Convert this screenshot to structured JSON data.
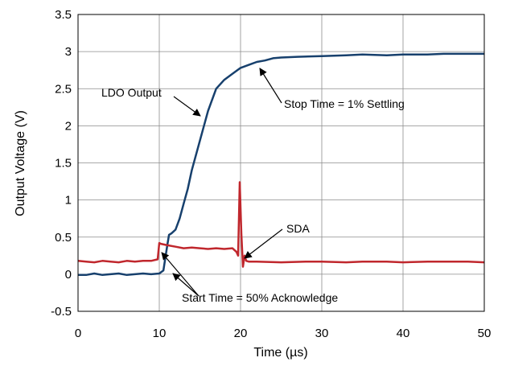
{
  "chart_data": {
    "type": "line",
    "title": "",
    "xlabel": "Time (µs)",
    "ylabel": "Output Voltage (V)",
    "xlim": [
      0,
      50
    ],
    "ylim": [
      -0.5,
      3.5
    ],
    "xticks": [
      "0",
      "10",
      "20",
      "30",
      "40",
      "50"
    ],
    "yticks": [
      "-0.5",
      "0",
      "0.5",
      "1",
      "1.5",
      "2",
      "2.5",
      "3",
      "3.5"
    ],
    "grid": true,
    "legend": "none",
    "series": [
      {
        "name": "LDO Output",
        "color": "#17406d",
        "x": [
          0,
          1,
          2,
          3,
          4,
          5,
          6,
          7,
          8,
          9,
          10,
          10.5,
          11,
          11.2,
          11.5,
          12,
          12.5,
          13,
          13.5,
          14,
          15,
          16,
          17,
          18,
          19,
          20,
          21,
          22,
          23,
          24,
          25,
          27,
          30,
          33,
          35,
          38,
          40,
          43,
          45,
          48,
          50
        ],
        "y": [
          -0.01,
          -0.01,
          0.01,
          -0.01,
          0.0,
          0.01,
          -0.01,
          0.0,
          0.01,
          0.0,
          0.01,
          0.05,
          0.4,
          0.53,
          0.55,
          0.6,
          0.75,
          0.95,
          1.15,
          1.4,
          1.8,
          2.2,
          2.5,
          2.62,
          2.7,
          2.78,
          2.82,
          2.86,
          2.88,
          2.91,
          2.92,
          2.93,
          2.94,
          2.95,
          2.96,
          2.95,
          2.96,
          2.96,
          2.97,
          2.97,
          2.97
        ]
      },
      {
        "name": "SDA",
        "color": "#c0272d",
        "x": [
          0,
          1,
          2,
          3,
          4,
          5,
          6,
          7,
          8,
          9,
          9.8,
          10.0,
          10.2,
          11,
          12,
          13,
          14,
          15,
          16,
          17,
          18,
          19,
          19.5,
          19.7,
          19.9,
          20.1,
          20.3,
          20.5,
          20.7,
          21,
          22,
          25,
          28,
          30,
          33,
          35,
          38,
          40,
          43,
          45,
          48,
          50
        ],
        "y": [
          0.18,
          0.17,
          0.16,
          0.18,
          0.17,
          0.16,
          0.18,
          0.17,
          0.18,
          0.18,
          0.2,
          0.42,
          0.41,
          0.39,
          0.37,
          0.35,
          0.36,
          0.35,
          0.34,
          0.35,
          0.34,
          0.35,
          0.3,
          0.25,
          1.24,
          0.55,
          0.1,
          0.25,
          0.18,
          0.17,
          0.17,
          0.16,
          0.17,
          0.17,
          0.16,
          0.17,
          0.17,
          0.16,
          0.17,
          0.17,
          0.17,
          0.16
        ]
      }
    ],
    "annotations": [
      {
        "text": "LDO Output",
        "x": 6.0,
        "y": 2.43
      },
      {
        "text": "Stop Time = 1% Settling",
        "x": 35.0,
        "y": 2.3
      },
      {
        "text": "SDA",
        "x": 26.0,
        "y": 0.57
      },
      {
        "text": "Start Time = 50% Acknowledge",
        "x": 30.5,
        "y": -0.29
      }
    ]
  }
}
